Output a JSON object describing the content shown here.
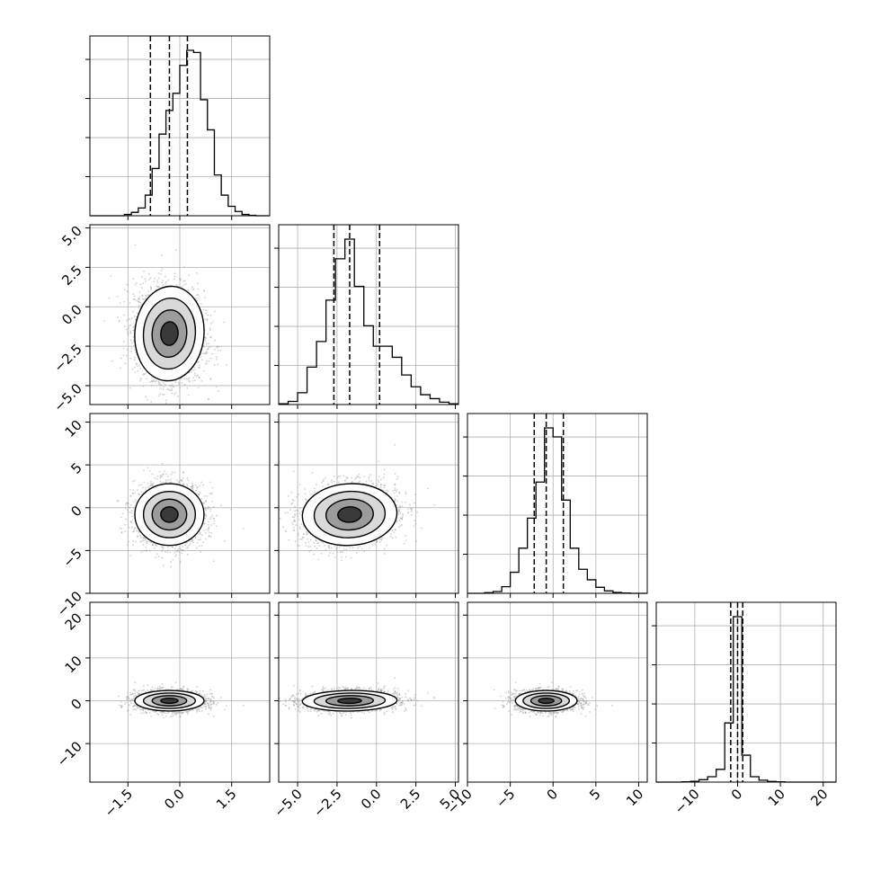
{
  "chart_data": {
    "type": "corner",
    "grid": true,
    "colors": {
      "line": "#000000",
      "grid": "#b0b0b0",
      "points": "#9a9a9a",
      "background": "#ffffff"
    },
    "params": [
      {
        "name": "",
        "range": [
          -2.6,
          2.6
        ],
        "ticks": [
          -1.5,
          0.0,
          1.5
        ],
        "tick_labels": [
          "−1.5",
          "0.0",
          "1.5"
        ],
        "quantiles": [
          -0.85,
          -0.3,
          0.22
        ],
        "median": -0.3,
        "sd": 0.5
      },
      {
        "name": "",
        "range": [
          -6.2,
          5.2
        ],
        "ticks": [
          -5.0,
          -2.5,
          0.0,
          2.5,
          5.0
        ],
        "tick_labels": [
          "−5.0",
          "−2.5",
          "0.0",
          "2.5",
          "5.0"
        ],
        "quantiles": [
          -2.7,
          -1.7,
          0.2
        ],
        "median": -1.7,
        "sd": 1.5
      },
      {
        "name": "",
        "range": [
          -10,
          11
        ],
        "ticks": [
          -10,
          -5,
          0,
          5,
          10
        ],
        "tick_labels": [
          "−10",
          "−5",
          "0",
          "5",
          "10"
        ],
        "quantiles": [
          -2.2,
          -0.8,
          1.2
        ],
        "median": -0.8,
        "sd": 1.8
      },
      {
        "name": "",
        "range": [
          -19,
          23
        ],
        "ticks": [
          -10,
          0,
          10,
          20
        ],
        "tick_labels": [
          "−10",
          "0",
          "10",
          "20"
        ],
        "quantiles": [
          -1.6,
          0.0,
          1.2
        ],
        "median": 0.0,
        "sd": 1.2
      }
    ],
    "histograms": [
      {
        "param": 0,
        "bins": [
          -2.6,
          -2.4,
          -2.2,
          -2.0,
          -1.8,
          -1.6,
          -1.4,
          -1.2,
          -1.0,
          -0.8,
          -0.6,
          -0.4,
          -0.2,
          0.0,
          0.2,
          0.4,
          0.6,
          0.8,
          1.0,
          1.2,
          1.4,
          1.6,
          1.8,
          2.0,
          2.2,
          2.4,
          2.6
        ],
        "counts": [
          0,
          0,
          0,
          0,
          0,
          3,
          8,
          18,
          48,
          110,
          190,
          245,
          285,
          350,
          385,
          380,
          270,
          200,
          95,
          48,
          22,
          10,
          3,
          1,
          0,
          0
        ]
      },
      {
        "param": 1,
        "bins": [
          -6.2,
          -5.6,
          -5.0,
          -4.4,
          -3.8,
          -3.2,
          -2.6,
          -2.0,
          -1.4,
          -0.8,
          -0.2,
          0.4,
          1.0,
          1.6,
          2.2,
          2.8,
          3.4,
          4.0,
          4.6,
          5.2
        ],
        "counts": [
          2,
          8,
          30,
          95,
          160,
          265,
          370,
          420,
          300,
          200,
          148,
          148,
          120,
          75,
          45,
          25,
          15,
          6,
          2
        ]
      },
      {
        "param": 2,
        "bins": [
          -10,
          -9,
          -8,
          -7,
          -6,
          -5,
          -4,
          -3,
          -2,
          -1,
          0,
          1,
          2,
          3,
          4,
          5,
          6,
          7,
          8,
          9,
          10,
          11
        ],
        "counts": [
          0,
          0,
          2,
          6,
          22,
          70,
          150,
          250,
          370,
          550,
          520,
          310,
          150,
          80,
          45,
          20,
          8,
          3,
          1,
          0,
          0
        ]
      },
      {
        "param": 3,
        "bins": [
          -19,
          -17,
          -15,
          -13,
          -11,
          -9,
          -7,
          -5,
          -3,
          -1,
          1,
          3,
          5,
          7,
          9,
          11,
          13,
          15,
          17,
          19,
          21,
          23
        ],
        "counts": [
          0,
          0,
          0,
          2,
          6,
          18,
          40,
          95,
          440,
          1230,
          200,
          40,
          14,
          5,
          2,
          0,
          0,
          0,
          0,
          0,
          0
        ]
      }
    ],
    "scatter_pairs": [
      {
        "x_param": 0,
        "y_param": 1,
        "n_points": 2400,
        "rho": -0.1
      },
      {
        "x_param": 0,
        "y_param": 2,
        "n_points": 2400,
        "rho": 0.0
      },
      {
        "x_param": 1,
        "y_param": 2,
        "n_points": 2400,
        "rho": 0.15
      },
      {
        "x_param": 0,
        "y_param": 3,
        "n_points": 2400,
        "rho": 0.0
      },
      {
        "x_param": 1,
        "y_param": 3,
        "n_points": 2400,
        "rho": 0.1
      },
      {
        "x_param": 2,
        "y_param": 3,
        "n_points": 2400,
        "rho": 0.0
      }
    ],
    "contour_levels_sigma": [
      0.5,
      1.0,
      1.5,
      2.0
    ]
  }
}
